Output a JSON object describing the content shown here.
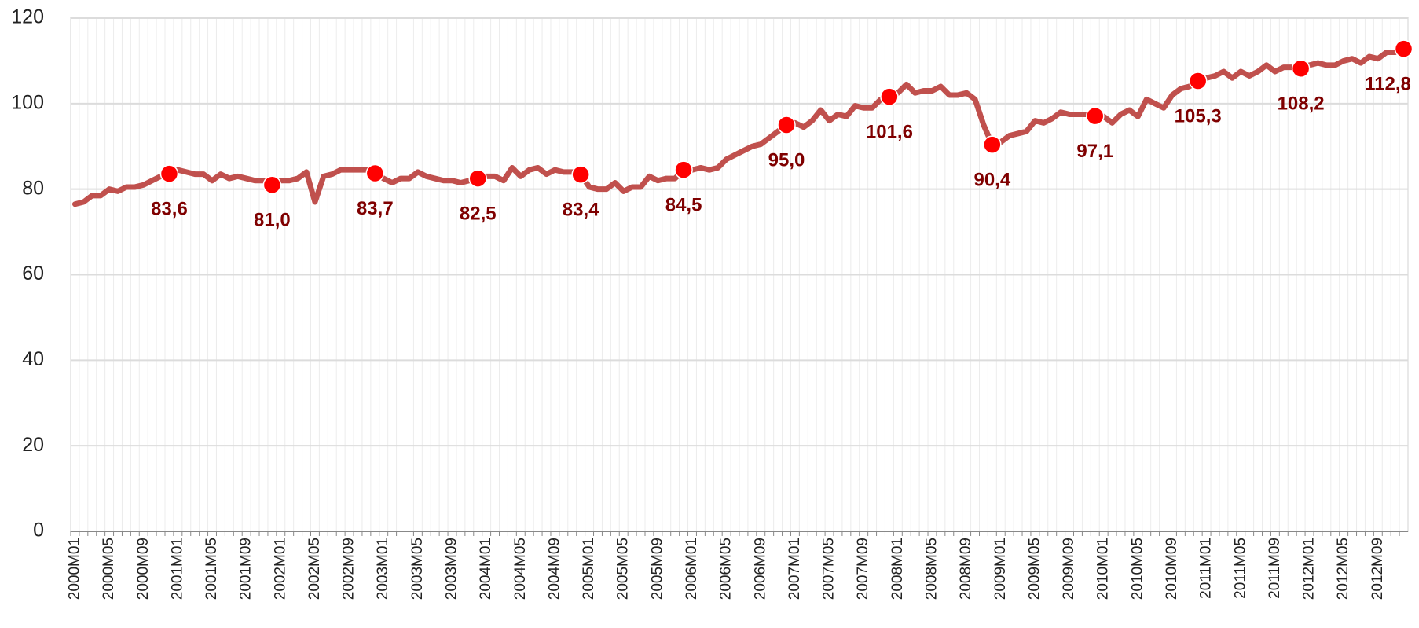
{
  "chart_data": {
    "type": "line",
    "categories": [
      "2000M01",
      null,
      null,
      null,
      "2000M05",
      null,
      null,
      null,
      "2000M09",
      null,
      null,
      null,
      "2001M01",
      null,
      null,
      null,
      "2001M05",
      null,
      null,
      null,
      "2001M09",
      null,
      null,
      null,
      "2002M01",
      null,
      null,
      null,
      "2002M05",
      null,
      null,
      null,
      "2002M09",
      null,
      null,
      null,
      "2003M01",
      null,
      null,
      null,
      "2003M05",
      null,
      null,
      null,
      "2003M09",
      null,
      null,
      null,
      "2004M01",
      null,
      null,
      null,
      "2004M05",
      null,
      null,
      null,
      "2004M09",
      null,
      null,
      null,
      "2005M01",
      null,
      null,
      null,
      "2005M05",
      null,
      null,
      null,
      "2005M09",
      null,
      null,
      null,
      "2006M01",
      null,
      null,
      null,
      "2006M05",
      null,
      null,
      null,
      "2006M09",
      null,
      null,
      null,
      "2007M01",
      null,
      null,
      null,
      "2007M05",
      null,
      null,
      null,
      "2007M09",
      null,
      null,
      null,
      "2008M01",
      null,
      null,
      null,
      "2008M05",
      null,
      null,
      null,
      "2008M09",
      null,
      null,
      null,
      "2009M01",
      null,
      null,
      null,
      "2009M05",
      null,
      null,
      null,
      "2009M09",
      null,
      null,
      null,
      "2010M01",
      null,
      null,
      null,
      "2010M05",
      null,
      null,
      null,
      "2010M09",
      null,
      null,
      null,
      "2011M01",
      null,
      null,
      null,
      "2011M05",
      null,
      null,
      null,
      "2011M09",
      null,
      null,
      null,
      "2012M01",
      null,
      null,
      null,
      "2012M05",
      null,
      null,
      null,
      "2012M09",
      null,
      null,
      null
    ],
    "values": [
      76.5,
      77,
      78.5,
      78.5,
      80,
      79.5,
      80.5,
      80.5,
      81,
      82,
      83,
      83.6,
      84.5,
      84,
      83.5,
      83.5,
      82,
      83.5,
      82.5,
      83,
      82.5,
      82,
      82,
      81.0,
      82,
      82,
      82.5,
      84,
      77,
      83,
      83.5,
      84.5,
      84.5,
      84.5,
      84.5,
      83.7,
      82.5,
      81.5,
      82.5,
      82.5,
      84,
      83,
      82.5,
      82,
      82,
      81.5,
      82,
      82.5,
      83,
      83,
      82,
      85,
      83,
      84.5,
      85,
      83.5,
      84.5,
      84,
      84,
      83.4,
      80.5,
      80,
      80,
      81.5,
      79.5,
      80.5,
      80.5,
      83,
      82,
      82.5,
      82.5,
      84.5,
      84.5,
      85,
      84.5,
      85,
      87,
      88,
      89,
      90,
      90.5,
      92,
      93.5,
      95.0,
      95.5,
      94.5,
      96,
      98.5,
      96,
      97.5,
      97,
      99.5,
      99,
      99,
      101,
      101.6,
      102.5,
      104.5,
      102.5,
      103,
      103,
      104,
      102,
      102,
      102.5,
      101,
      95,
      90.4,
      91,
      92.5,
      93,
      93.5,
      96,
      95.5,
      96.5,
      98,
      97.5,
      97.5,
      97.5,
      97.1,
      97,
      95.5,
      97.5,
      98.5,
      97,
      101,
      100,
      99,
      102,
      103.5,
      104,
      105.3,
      106,
      106.5,
      107.5,
      106,
      107.5,
      106.5,
      107.5,
      109,
      107.5,
      108.5,
      108.5,
      108.2,
      109,
      109.5,
      109,
      109,
      110,
      110.5,
      109.5,
      111,
      110.5,
      112,
      112,
      112.8
    ],
    "value_labels": [
      null,
      null,
      null,
      null,
      null,
      null,
      null,
      null,
      null,
      null,
      null,
      "83,6",
      null,
      null,
      null,
      null,
      null,
      null,
      null,
      null,
      null,
      null,
      null,
      "81,0",
      null,
      null,
      null,
      null,
      null,
      null,
      null,
      null,
      null,
      null,
      null,
      "83,7",
      null,
      null,
      null,
      null,
      null,
      null,
      null,
      null,
      null,
      null,
      null,
      "82,5",
      null,
      null,
      null,
      null,
      null,
      null,
      null,
      null,
      null,
      null,
      null,
      "83,4",
      null,
      null,
      null,
      null,
      null,
      null,
      null,
      null,
      null,
      null,
      null,
      "84,5",
      null,
      null,
      null,
      null,
      null,
      null,
      null,
      null,
      null,
      null,
      null,
      "95,0",
      null,
      null,
      null,
      null,
      null,
      null,
      null,
      null,
      null,
      null,
      null,
      "101,6",
      null,
      null,
      null,
      null,
      null,
      null,
      null,
      null,
      null,
      null,
      null,
      "90,4",
      null,
      null,
      null,
      null,
      null,
      null,
      null,
      null,
      null,
      null,
      null,
      "97,1",
      null,
      null,
      null,
      null,
      null,
      null,
      null,
      null,
      null,
      null,
      null,
      "105,3",
      null,
      null,
      null,
      null,
      null,
      null,
      null,
      null,
      null,
      null,
      null,
      "108,2",
      null,
      null,
      null,
      null,
      null,
      null,
      null,
      null,
      null,
      null,
      null,
      "112,8"
    ],
    "color": "#c0504d",
    "marker_color": "#ff0000",
    "ylim": [
      0,
      120
    ],
    "yticks": [
      0,
      20,
      40,
      60,
      80,
      100,
      120
    ],
    "grid": true
  }
}
